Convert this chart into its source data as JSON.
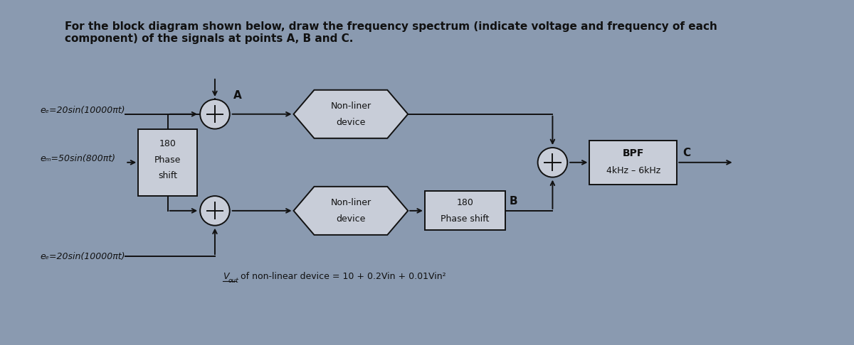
{
  "bg_color": "#8a9ab0",
  "title_line1": "For the block diagram shown below, draw the frequency spectrum (indicate voltage and frequency of each",
  "title_line2": "component) of the signals at points A, B and C.",
  "ec_top": "eₑ=20sin(10000πt)",
  "em_label": "eₘ=50sin(800πt)",
  "ec_bot": "eₑ=20sin(10000πt)",
  "phase_box_text": [
    "180",
    "Phase",
    "shift"
  ],
  "nonlinear_text_top": [
    "Non-liner",
    "device"
  ],
  "nonlinear_text_bot": [
    "Non-liner",
    "device"
  ],
  "phase_shift_bot_text": [
    "180",
    "Phase shift"
  ],
  "bpf_text": [
    "BPF",
    "4kHz – 6kHz"
  ],
  "equation_label": "V",
  "equation_sub": "out",
  "equation_rest": " of non-linear device = 10 + 0.2Vin + 0.01Vin²",
  "label_A": "A",
  "label_B": "B",
  "label_C": "C",
  "text_color": "#111111",
  "box_fill": "#c8cdd8",
  "box_edge": "#111111",
  "lw": 1.4,
  "title_fontsize": 11,
  "label_fontsize": 10,
  "body_fontsize": 9
}
